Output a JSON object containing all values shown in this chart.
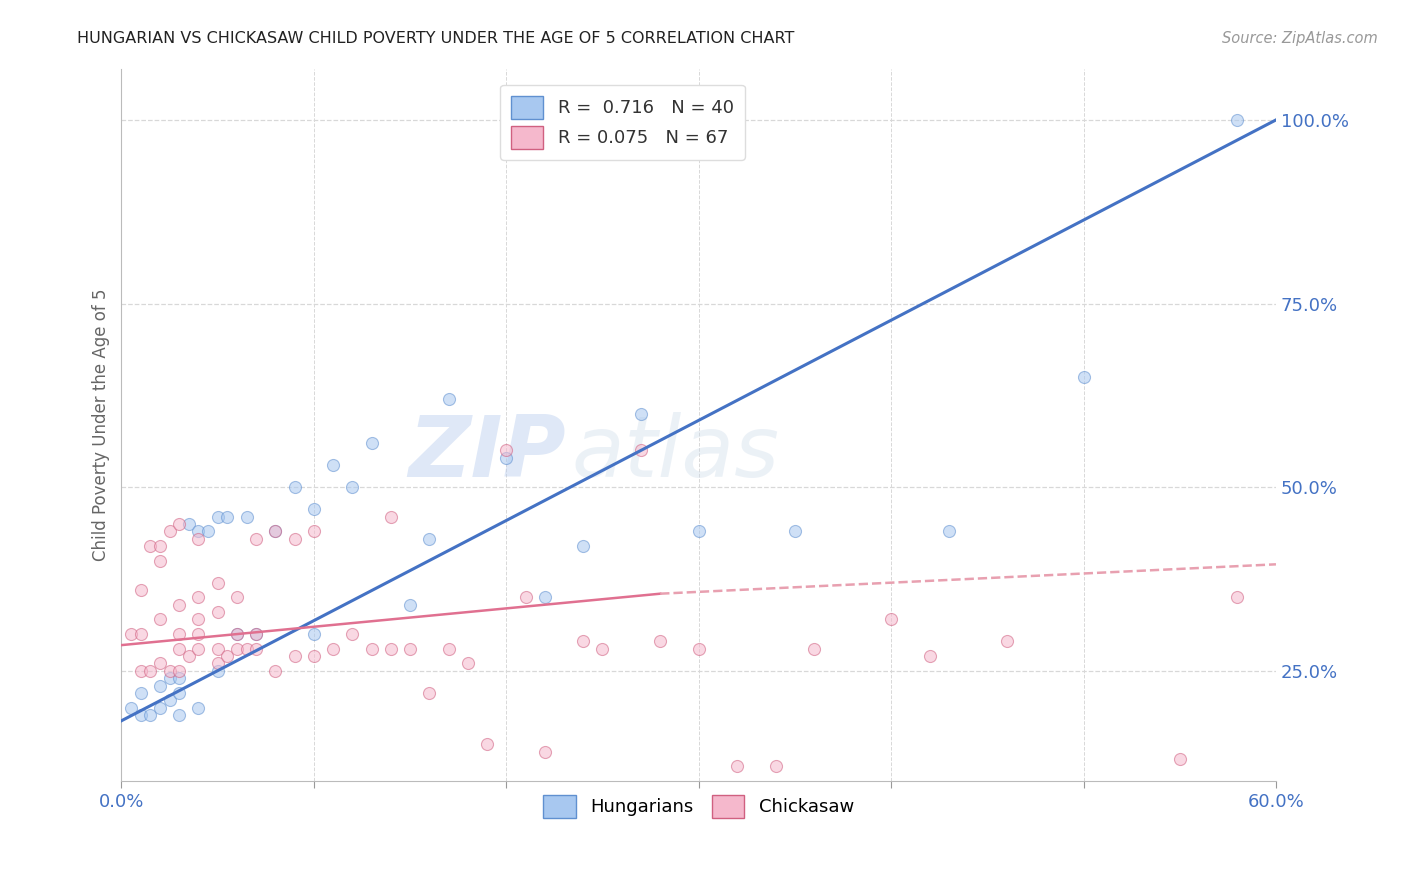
{
  "title": "HUNGARIAN VS CHICKASAW CHILD POVERTY UNDER THE AGE OF 5 CORRELATION CHART",
  "source": "Source: ZipAtlas.com",
  "ylabel": "Child Poverty Under the Age of 5",
  "xlim": [
    0.0,
    0.6
  ],
  "ylim": [
    0.1,
    1.07
  ],
  "xticks": [
    0.0,
    0.1,
    0.2,
    0.3,
    0.4,
    0.5,
    0.6
  ],
  "xticklabels": [
    "0.0%",
    "",
    "",
    "",
    "",
    "",
    "60.0%"
  ],
  "ytick_vals": [
    0.25,
    0.5,
    0.75,
    1.0
  ],
  "yticklabels": [
    "25.0%",
    "50.0%",
    "75.0%",
    "100.0%"
  ],
  "legend_line1": "R =  0.716   N = 40",
  "legend_line2": "R = 0.075   N = 67",
  "hungarian_color": "#a8c8f0",
  "hungarian_edge": "#6090d0",
  "chickasaw_color": "#f5b8cc",
  "chickasaw_edge": "#d06080",
  "trend_hungarian_color": "#4472c4",
  "trend_chickasaw_solid_color": "#e07090",
  "trend_chickasaw_dash_color": "#e8a0b0",
  "background_color": "#ffffff",
  "watermark_zip": "ZIP",
  "watermark_atlas": "atlas",
  "grid_color": "#d8d8d8",
  "marker_size": 75,
  "marker_alpha": 0.55,
  "hungarian_scatter_x": [
    0.005,
    0.01,
    0.01,
    0.015,
    0.02,
    0.02,
    0.025,
    0.025,
    0.03,
    0.03,
    0.03,
    0.035,
    0.04,
    0.04,
    0.045,
    0.05,
    0.05,
    0.055,
    0.06,
    0.065,
    0.07,
    0.08,
    0.09,
    0.1,
    0.1,
    0.11,
    0.12,
    0.13,
    0.15,
    0.16,
    0.17,
    0.2,
    0.22,
    0.24,
    0.27,
    0.3,
    0.35,
    0.43,
    0.5,
    0.58
  ],
  "hungarian_scatter_y": [
    0.2,
    0.19,
    0.22,
    0.19,
    0.2,
    0.23,
    0.21,
    0.24,
    0.19,
    0.22,
    0.24,
    0.45,
    0.2,
    0.44,
    0.44,
    0.25,
    0.46,
    0.46,
    0.3,
    0.46,
    0.3,
    0.44,
    0.5,
    0.3,
    0.47,
    0.53,
    0.5,
    0.56,
    0.34,
    0.43,
    0.62,
    0.54,
    0.35,
    0.42,
    0.6,
    0.44,
    0.44,
    0.44,
    0.65,
    1.0
  ],
  "chickasaw_scatter_x": [
    0.005,
    0.01,
    0.01,
    0.01,
    0.015,
    0.015,
    0.02,
    0.02,
    0.02,
    0.02,
    0.025,
    0.025,
    0.03,
    0.03,
    0.03,
    0.03,
    0.03,
    0.035,
    0.04,
    0.04,
    0.04,
    0.04,
    0.04,
    0.05,
    0.05,
    0.05,
    0.05,
    0.055,
    0.06,
    0.06,
    0.06,
    0.065,
    0.07,
    0.07,
    0.07,
    0.08,
    0.08,
    0.09,
    0.09,
    0.1,
    0.1,
    0.11,
    0.12,
    0.13,
    0.14,
    0.14,
    0.15,
    0.16,
    0.17,
    0.18,
    0.19,
    0.2,
    0.21,
    0.22,
    0.24,
    0.25,
    0.27,
    0.28,
    0.3,
    0.32,
    0.34,
    0.36,
    0.4,
    0.42,
    0.46,
    0.55,
    0.58
  ],
  "chickasaw_scatter_y": [
    0.3,
    0.25,
    0.3,
    0.36,
    0.25,
    0.42,
    0.26,
    0.32,
    0.4,
    0.42,
    0.25,
    0.44,
    0.25,
    0.28,
    0.3,
    0.34,
    0.45,
    0.27,
    0.28,
    0.3,
    0.32,
    0.35,
    0.43,
    0.26,
    0.28,
    0.33,
    0.37,
    0.27,
    0.28,
    0.3,
    0.35,
    0.28,
    0.28,
    0.3,
    0.43,
    0.25,
    0.44,
    0.27,
    0.43,
    0.27,
    0.44,
    0.28,
    0.3,
    0.28,
    0.28,
    0.46,
    0.28,
    0.22,
    0.28,
    0.26,
    0.15,
    0.55,
    0.35,
    0.14,
    0.29,
    0.28,
    0.55,
    0.29,
    0.28,
    0.12,
    0.12,
    0.28,
    0.32,
    0.27,
    0.29,
    0.13,
    0.35
  ],
  "hungarian_trend": [
    0.0,
    0.182,
    0.6,
    1.0
  ],
  "chickasaw_solid_trend": [
    0.0,
    0.285,
    0.28,
    0.355
  ],
  "chickasaw_dash_trend": [
    0.28,
    0.355,
    0.6,
    0.395
  ]
}
